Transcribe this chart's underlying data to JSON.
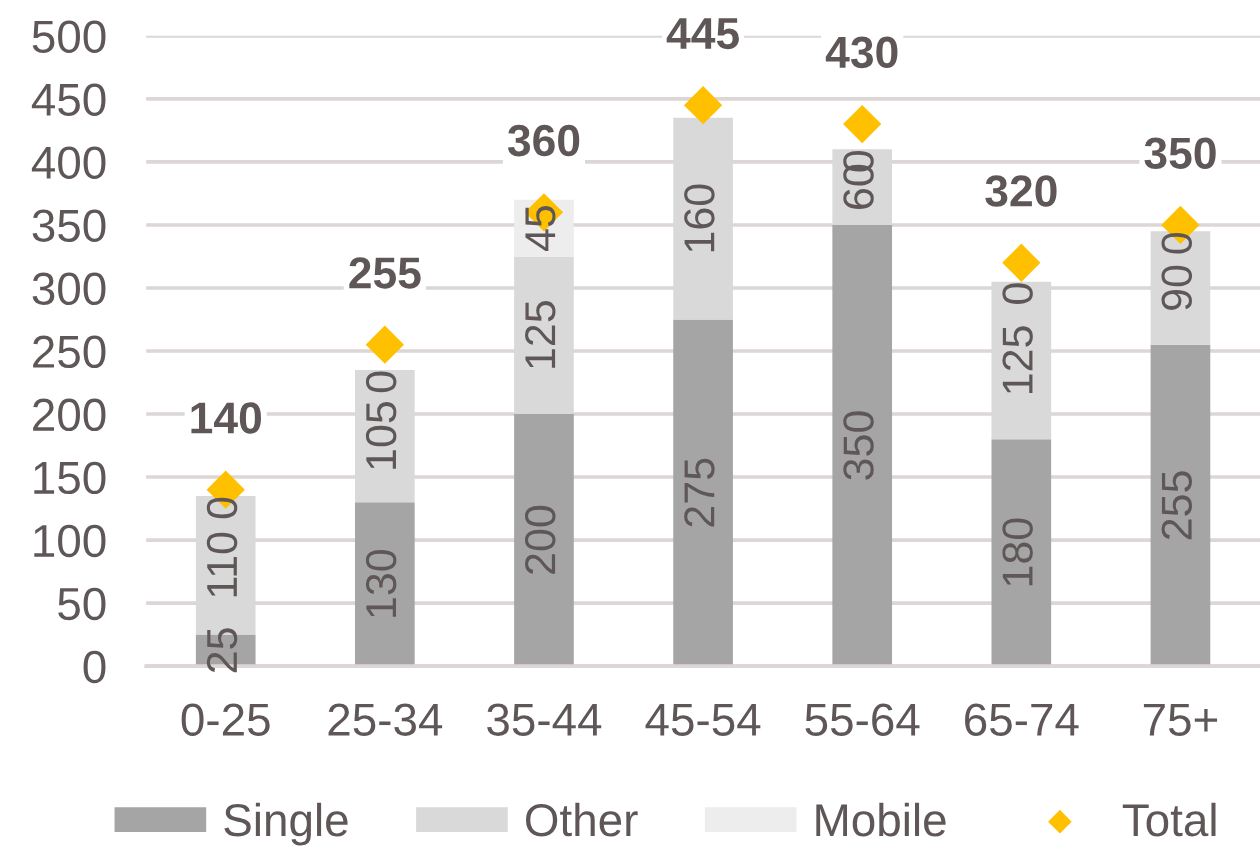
{
  "chart_data": {
    "type": "bar",
    "stacked": true,
    "categories": [
      "0-25",
      "25-34",
      "35-44",
      "45-54",
      "55-64",
      "65-74",
      "75+"
    ],
    "series": [
      {
        "name": "Single",
        "color": "#a5a5a5",
        "values": [
          25,
          130,
          200,
          275,
          350,
          180,
          255
        ],
        "value_labels": [
          "25",
          "130",
          "200",
          "275",
          "350",
          "180",
          "255"
        ]
      },
      {
        "name": "Other",
        "color": "#d9d9d9",
        "values": [
          110,
          105,
          125,
          160,
          60,
          125,
          90
        ],
        "value_labels": [
          "110",
          "105",
          "125",
          "160",
          "60",
          "125",
          "90"
        ]
      },
      {
        "name": "Mobile",
        "color": "#ededed",
        "values": [
          0,
          0,
          45,
          0,
          0,
          0,
          0
        ],
        "value_labels": [
          "0",
          "0",
          "45",
          null,
          "0",
          "0",
          "0"
        ]
      },
      {
        "name": "Total",
        "type": "scatter",
        "marker": "diamond",
        "color": "#ffc000",
        "values": [
          140,
          255,
          360,
          445,
          430,
          320,
          350
        ],
        "value_labels": [
          "140",
          "255",
          "360",
          "445",
          "430",
          "320",
          "350"
        ]
      }
    ],
    "ylim": [
      0,
      500
    ],
    "yticks": [
      0,
      50,
      100,
      150,
      200,
      250,
      300,
      350,
      400,
      450,
      500
    ],
    "grid": "y",
    "legend": "bottom"
  }
}
